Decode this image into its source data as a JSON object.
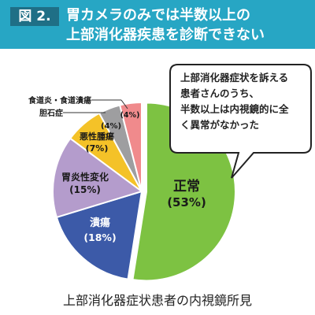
{
  "figure_label": "図 2.",
  "title_line1": "胃カメラのみでは半数以上の",
  "title_line2": "上部消化器疾患を診断できない",
  "callout_lines": [
    "上部消化器症状を訴える",
    "患者さんのうち、",
    "半数以上は内視鏡的に全",
    "く異常がなかった"
  ],
  "caption": "上部消化器症状患者の内視鏡所見",
  "colors": {
    "header": "#27a6c4",
    "label_box": "#1f6f86"
  },
  "chart_data": {
    "type": "pie",
    "title": "",
    "slices": [
      {
        "name": "正常",
        "value": 53,
        "label": "(53%)",
        "color": "#7dc242"
      },
      {
        "name": "潰瘍",
        "value": 18,
        "label": "(18%)",
        "color": "#3c5aa8"
      },
      {
        "name": "胃炎性変化",
        "value": 15,
        "label": "(15%)",
        "color": "#b49ccc"
      },
      {
        "name": "悪性腫瘍",
        "value": 7,
        "label": "(7%)",
        "color": "#f4c228"
      },
      {
        "name": "胆石症",
        "value": 4,
        "label": "(4%)",
        "color": "#9e9ea0"
      },
      {
        "name": "食道炎・食道潰瘍",
        "value": 4,
        "label": "(4%)",
        "color": "#f08a8c"
      }
    ]
  }
}
